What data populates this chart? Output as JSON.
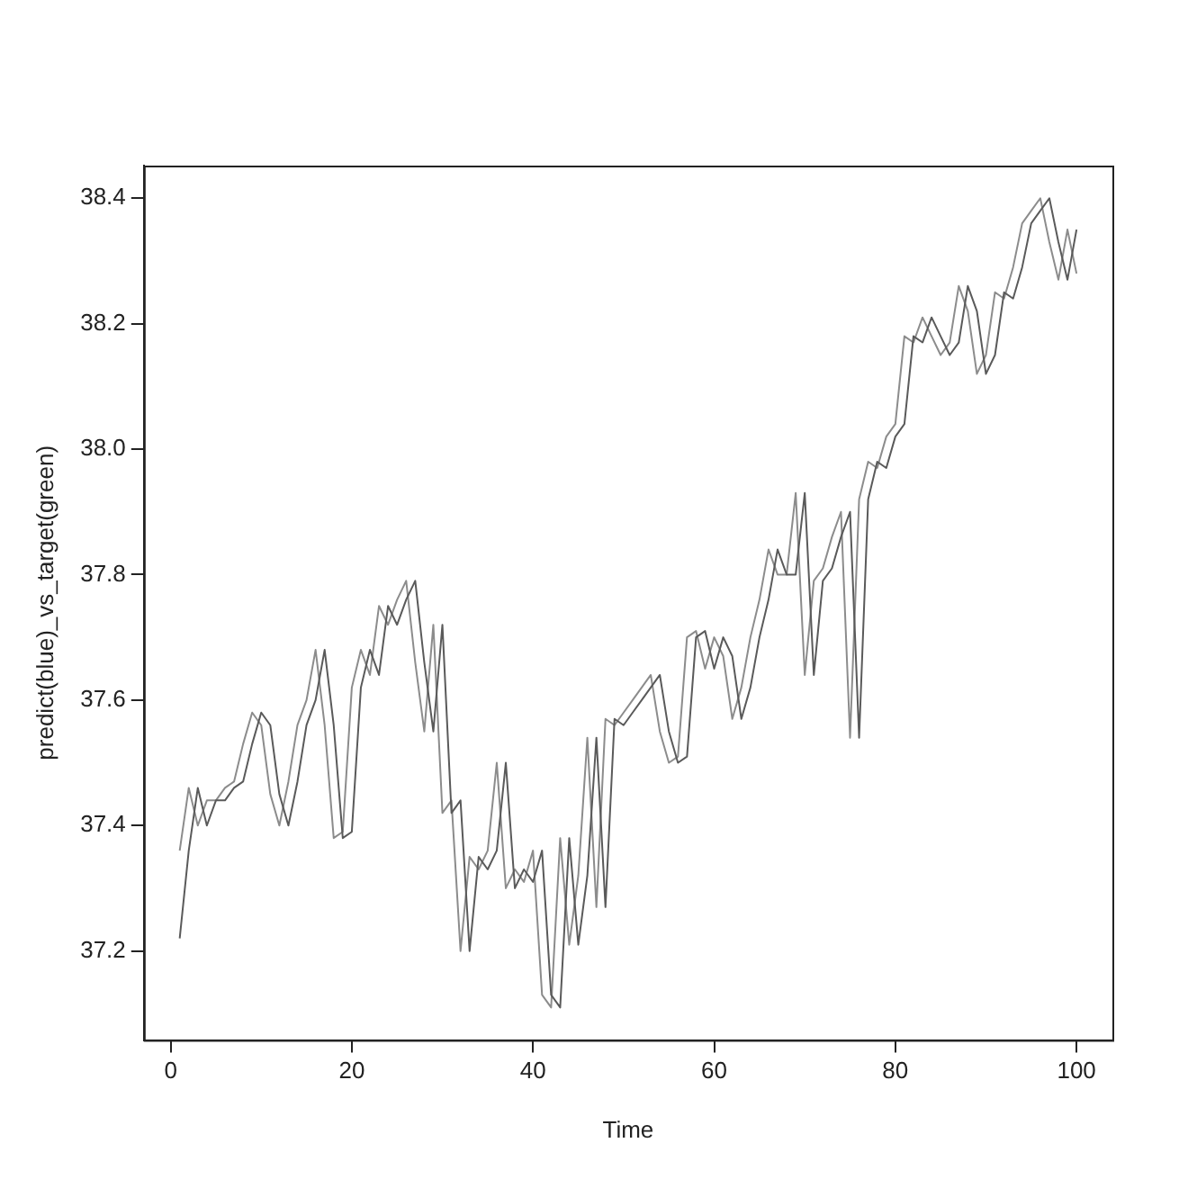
{
  "chart_data": {
    "type": "line",
    "xlabel": "Time",
    "ylabel": "predict(blue)_vs_target(green)",
    "x": [
      1,
      2,
      3,
      4,
      5,
      6,
      7,
      8,
      9,
      10,
      11,
      12,
      13,
      14,
      15,
      16,
      17,
      18,
      19,
      20,
      21,
      22,
      23,
      24,
      25,
      26,
      27,
      28,
      29,
      30,
      31,
      32,
      33,
      34,
      35,
      36,
      37,
      38,
      39,
      40,
      41,
      42,
      43,
      44,
      45,
      46,
      47,
      48,
      49,
      50,
      51,
      52,
      53,
      54,
      55,
      56,
      57,
      58,
      59,
      60,
      61,
      62,
      63,
      64,
      65,
      66,
      67,
      68,
      69,
      70,
      71,
      72,
      73,
      74,
      75,
      76,
      77,
      78,
      79,
      80,
      81,
      82,
      83,
      84,
      85,
      86,
      87,
      88,
      89,
      90,
      91,
      92,
      93,
      94,
      95,
      96,
      97,
      98,
      99,
      100
    ],
    "series": [
      {
        "color": "#5a5a5a",
        "values": [
          37.22,
          37.36,
          37.46,
          37.4,
          37.44,
          37.44,
          37.46,
          37.47,
          37.53,
          37.58,
          37.56,
          37.45,
          37.4,
          37.47,
          37.56,
          37.6,
          37.68,
          37.56,
          37.38,
          37.39,
          37.62,
          37.68,
          37.64,
          37.75,
          37.72,
          37.76,
          37.79,
          37.66,
          37.55,
          37.72,
          37.42,
          37.44,
          37.2,
          37.35,
          37.33,
          37.36,
          37.5,
          37.3,
          37.33,
          37.31,
          37.36,
          37.13,
          37.11,
          37.38,
          37.21,
          37.32,
          37.54,
          37.27,
          37.57,
          37.56,
          37.58,
          37.6,
          37.62,
          37.64,
          37.55,
          37.5,
          37.51,
          37.7,
          37.71,
          37.65,
          37.7,
          37.67,
          37.57,
          37.62,
          37.7,
          37.76,
          37.84,
          37.8,
          37.8,
          37.93,
          37.64,
          37.79,
          37.81,
          37.86,
          37.9,
          37.54,
          37.92,
          37.98,
          37.97,
          38.02,
          38.04,
          38.18,
          38.17,
          38.21,
          38.18,
          38.15,
          38.17,
          38.26,
          38.22,
          38.12,
          38.15,
          38.25,
          38.24,
          38.29,
          38.36,
          38.38,
          38.4,
          38.33,
          38.27,
          38.35
        ]
      },
      {
        "color": "#8c8c8c",
        "values": [
          37.36,
          37.46,
          37.4,
          37.44,
          37.44,
          37.46,
          37.47,
          37.53,
          37.58,
          37.56,
          37.45,
          37.4,
          37.47,
          37.56,
          37.6,
          37.68,
          37.56,
          37.38,
          37.39,
          37.62,
          37.68,
          37.64,
          37.75,
          37.72,
          37.76,
          37.79,
          37.66,
          37.55,
          37.72,
          37.42,
          37.44,
          37.2,
          37.35,
          37.33,
          37.36,
          37.5,
          37.3,
          37.33,
          37.31,
          37.36,
          37.13,
          37.11,
          37.38,
          37.21,
          37.32,
          37.54,
          37.27,
          37.57,
          37.56,
          37.58,
          37.6,
          37.62,
          37.64,
          37.55,
          37.5,
          37.51,
          37.7,
          37.71,
          37.65,
          37.7,
          37.67,
          37.57,
          37.62,
          37.7,
          37.76,
          37.84,
          37.8,
          37.8,
          37.93,
          37.64,
          37.79,
          37.81,
          37.86,
          37.9,
          37.54,
          37.92,
          37.98,
          37.97,
          38.02,
          38.04,
          38.18,
          38.17,
          38.21,
          38.18,
          38.15,
          38.17,
          38.26,
          38.22,
          38.12,
          38.15,
          38.25,
          38.24,
          38.29,
          38.36,
          38.38,
          38.4,
          38.33,
          38.27,
          38.35,
          38.28
        ]
      }
    ],
    "xlim": [
      -2.96,
      103.96
    ],
    "xticks": [
      0,
      20,
      40,
      60,
      80,
      100
    ],
    "ylim": [
      37.058,
      38.452
    ],
    "yticks": [
      37.2,
      37.4,
      37.6,
      37.8,
      {
        "value": 38,
        "label": "38.0"
      },
      38.2,
      38.4
    ],
    "grid": false,
    "legend": false,
    "marker": "none",
    "line_style": "solid"
  }
}
